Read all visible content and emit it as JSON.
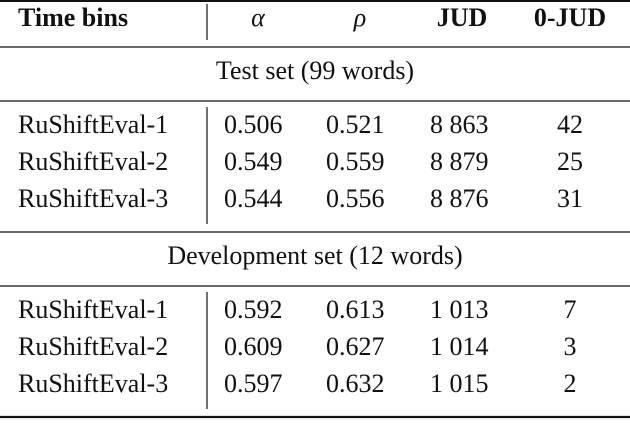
{
  "table": {
    "header": [
      "Time bins",
      "α",
      "ρ",
      "JUD",
      "0-JUD"
    ],
    "sections": [
      {
        "title": "Test set (99 words)",
        "rows": [
          [
            "RuShiftEval-1",
            "0.506",
            "0.521",
            "8 863",
            "42"
          ],
          [
            "RuShiftEval-2",
            "0.549",
            "0.559",
            "8 879",
            "25"
          ],
          [
            "RuShiftEval-3",
            "0.544",
            "0.556",
            "8 876",
            "31"
          ]
        ]
      },
      {
        "title": "Development set (12 words)",
        "rows": [
          [
            "RuShiftEval-1",
            "0.592",
            "0.613",
            "1 013",
            "7"
          ],
          [
            "RuShiftEval-2",
            "0.609",
            "0.627",
            "1 014",
            "3"
          ],
          [
            "RuShiftEval-3",
            "0.597",
            "0.632",
            "1 015",
            "2"
          ]
        ]
      }
    ]
  }
}
